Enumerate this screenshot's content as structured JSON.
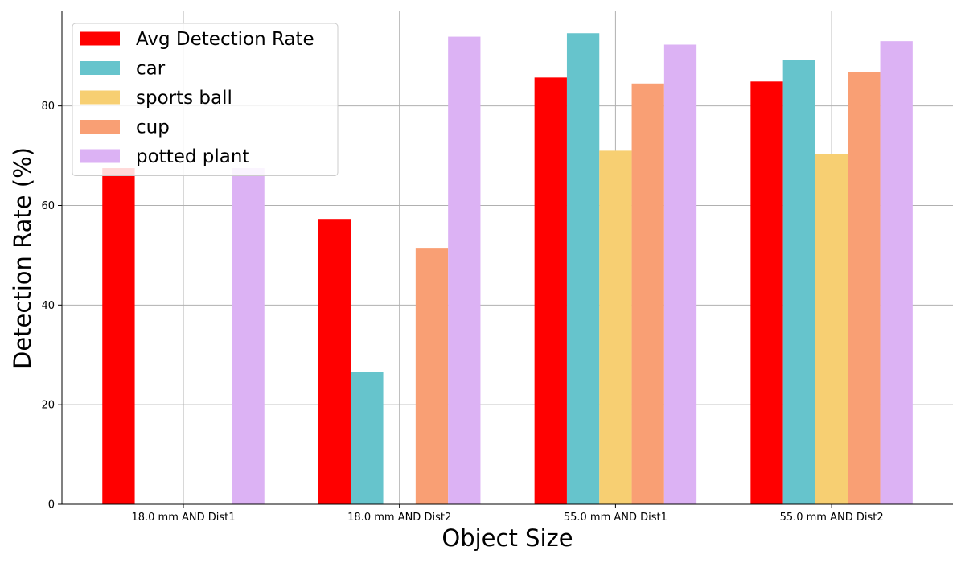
{
  "chart_data": {
    "type": "bar",
    "title": "",
    "xlabel": "Object Size",
    "ylabel": "Detection Rate (%)",
    "categories": [
      "18.0 mm AND Dist1",
      "18.0 mm AND Dist2",
      "55.0 mm AND Dist1",
      "55.0 mm AND Dist2"
    ],
    "series": [
      {
        "name": "Avg Detection Rate",
        "color": "#ff0000",
        "values": [
          67.5,
          57.3,
          85.7,
          84.9
        ]
      },
      {
        "name": "car",
        "color": "#66c4cc",
        "values": [
          0,
          26.6,
          94.6,
          89.2
        ]
      },
      {
        "name": "sports ball",
        "color": "#f7cf72",
        "values": [
          0,
          0,
          71.0,
          70.4
        ]
      },
      {
        "name": "cup",
        "color": "#f99f74",
        "values": [
          0,
          51.5,
          84.5,
          86.8
        ]
      },
      {
        "name": "potted plant",
        "color": "#dcb2f4",
        "values": [
          67.5,
          93.9,
          92.3,
          93.0
        ]
      }
    ],
    "ylim": [
      0,
      99
    ],
    "yticks": [
      0,
      20,
      40,
      60,
      80
    ],
    "grid": true,
    "legend_position": "top-left"
  }
}
